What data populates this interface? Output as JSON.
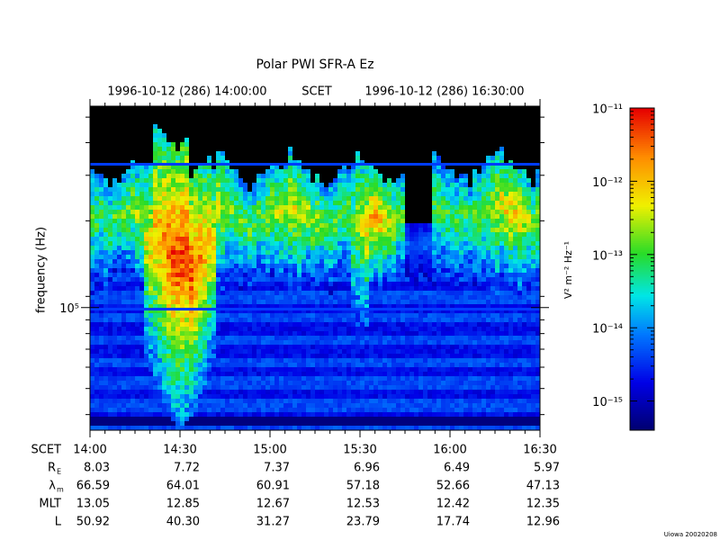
{
  "title": "Polar PWI SFR-A Ez",
  "header": {
    "start": "1996-10-12 (286) 14:00:00",
    "mid": "SCET",
    "end": "1996-10-12 (286) 16:30:00"
  },
  "chart_data": {
    "type": "spectrogram",
    "ylabel": "frequency (Hz)",
    "ylog": true,
    "ylim": [
      35000,
      560000
    ],
    "yticks": [
      {
        "value": 100000,
        "label": "10⁵"
      }
    ],
    "zlabel": "V² m⁻² Hz⁻¹",
    "zlog": true,
    "zlim": [
      4e-16,
      1e-11
    ],
    "zticks": [
      {
        "value": 1e-11,
        "label": "10⁻¹¹"
      },
      {
        "value": 1e-12,
        "label": "10⁻¹²"
      },
      {
        "value": 1e-13,
        "label": "10⁻¹³"
      },
      {
        "value": 1e-14,
        "label": "10⁻¹⁴"
      },
      {
        "value": 1e-15,
        "label": "10⁻¹⁵"
      }
    ]
  },
  "ephemeris": {
    "rows": [
      {
        "label": "SCET",
        "values": [
          "14:00",
          "14:30",
          "15:00",
          "15:30",
          "16:00",
          "16:30"
        ]
      },
      {
        "label": "R",
        "sub": "E",
        "values": [
          "8.03",
          "7.72",
          "7.37",
          "6.96",
          "6.49",
          "5.97"
        ]
      },
      {
        "label": "λ",
        "sub": "m",
        "values": [
          "66.59",
          "64.01",
          "60.91",
          "57.18",
          "52.66",
          "47.13"
        ]
      },
      {
        "label": "MLT",
        "values": [
          "13.05",
          "12.85",
          "12.67",
          "12.53",
          "12.42",
          "12.35"
        ]
      },
      {
        "label": "L",
        "values": [
          "50.92",
          "40.30",
          "31.27",
          "23.79",
          "17.74",
          "12.96"
        ]
      }
    ]
  },
  "footer": "Uiowa 20020208"
}
